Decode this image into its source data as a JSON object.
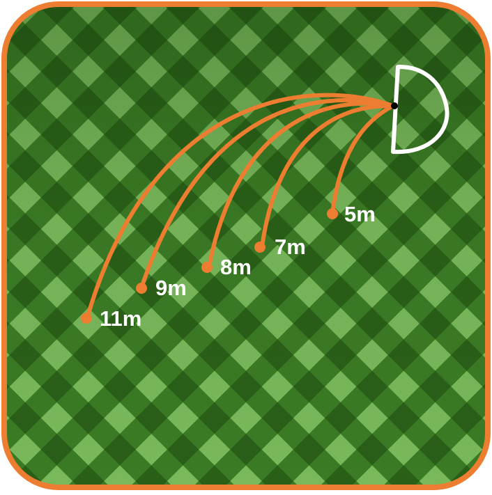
{
  "colors": {
    "border": "#ed7d31",
    "path": "#ed7d31",
    "grass_dark": "#2f6b1d",
    "grass_light": "#6aa84f",
    "target": "#ffffff",
    "origin_dot": "#000000"
  },
  "icons": {
    "target": "d-shape-icon",
    "origin": "dot-icon"
  },
  "distances": [
    {
      "label": "5m"
    },
    {
      "label": "7m"
    },
    {
      "label": "8m"
    },
    {
      "label": "9m"
    },
    {
      "label": "11m"
    }
  ]
}
